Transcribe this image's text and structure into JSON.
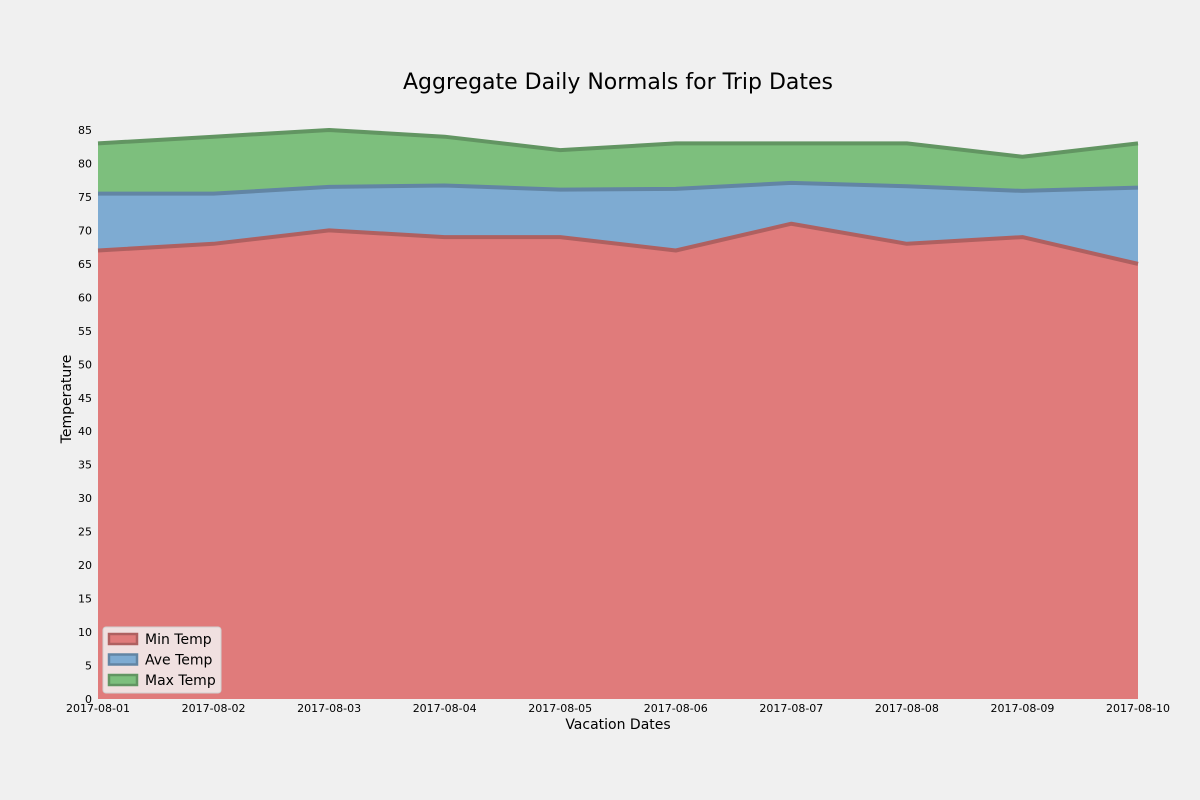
{
  "chart_data": {
    "type": "area",
    "title": "Aggregate Daily Normals for Trip Dates",
    "xlabel": "Vacation Dates",
    "ylabel": "Temperature",
    "x": [
      "2017-08-01",
      "2017-08-02",
      "2017-08-03",
      "2017-08-04",
      "2017-08-05",
      "2017-08-06",
      "2017-08-07",
      "2017-08-08",
      "2017-08-09",
      "2017-08-10"
    ],
    "ylim": [
      0,
      85
    ],
    "yticks": [
      0,
      5,
      10,
      15,
      20,
      25,
      30,
      35,
      40,
      45,
      50,
      55,
      60,
      65,
      70,
      75,
      80,
      85
    ],
    "stacked": false,
    "grid": false,
    "legend_position": "lower-left",
    "series": [
      {
        "name": "Min Temp",
        "color": "#e07b7b",
        "values": [
          67,
          68,
          70,
          69,
          69,
          67,
          71,
          68,
          69,
          65
        ]
      },
      {
        "name": "Ave Temp",
        "color": "#7eabd2",
        "values": [
          75.5,
          75.5,
          76.5,
          76.7,
          76.1,
          76.2,
          77.1,
          76.6,
          75.9,
          76.4
        ]
      },
      {
        "name": "Max Temp",
        "color": "#7dbf7d",
        "values": [
          83,
          84,
          85,
          84,
          82,
          83,
          83,
          83,
          81,
          83
        ]
      }
    ]
  }
}
